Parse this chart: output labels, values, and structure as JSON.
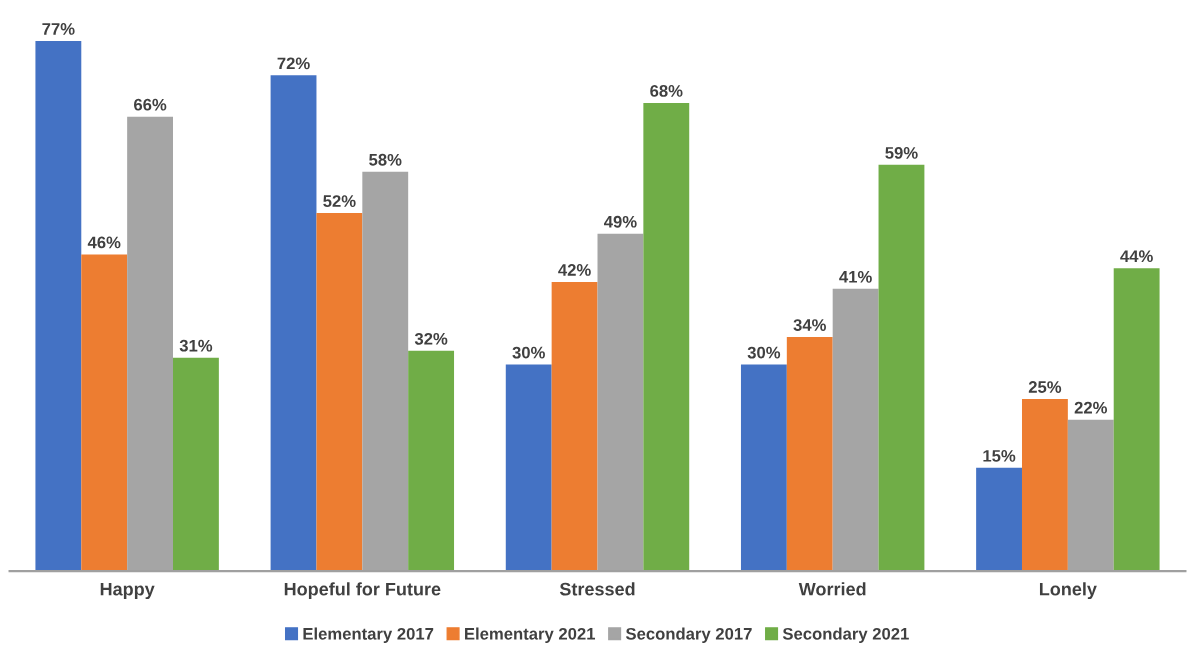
{
  "chart_data": {
    "type": "bar",
    "categories": [
      "Happy",
      "Hopeful for Future",
      "Stressed",
      "Worried",
      "Lonely"
    ],
    "series": [
      {
        "name": "Elementary 2017",
        "color": "#4472c4",
        "values": [
          77,
          72,
          30,
          30,
          15
        ],
        "value_labels": [
          "77%",
          "72%",
          "30%",
          "30%",
          "15%"
        ]
      },
      {
        "name": "Elementary 2021",
        "color": "#ed7d31",
        "values": [
          46,
          52,
          42,
          34,
          25
        ],
        "value_labels": [
          "46%",
          "52%",
          "42%",
          "34%",
          "25%"
        ]
      },
      {
        "name": "Secondary 2017",
        "color": "#a5a5a5",
        "values": [
          66,
          58,
          49,
          41,
          22
        ],
        "value_labels": [
          "66%",
          "58%",
          "49%",
          "41%",
          "22%"
        ]
      },
      {
        "name": "Secondary 2021",
        "color": "#70ad47",
        "values": [
          31,
          32,
          68,
          59,
          44
        ],
        "value_labels": [
          "31%",
          "32%",
          "68%",
          "59%",
          "44%"
        ]
      }
    ],
    "legend": "bottom",
    "grid": false,
    "tick_labels": "x"
  }
}
